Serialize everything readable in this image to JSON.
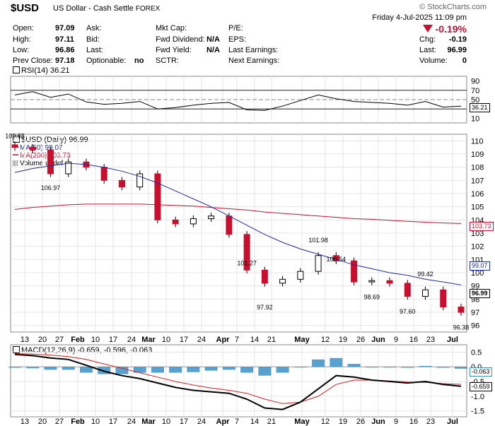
{
  "header": {
    "symbol": "$USD",
    "name": "US Dollar - Cash Settle",
    "exchange": "FOREX",
    "brand": "© StockCharts.com",
    "datetime": "Friday   4-Jul-2025  11:09 pm",
    "change_pct": "-0.19%"
  },
  "quote": {
    "open_label": "Open:",
    "open": "97.09",
    "high_label": "High:",
    "high": "97.11",
    "low_label": "Low:",
    "low": "96.86",
    "prev_label": "Prev Close:",
    "prev": "97.18",
    "ask_label": "Ask:",
    "bid_label": "Bid:",
    "last_label": "Last:",
    "optionable_label": "Optionable:",
    "optionable": "no",
    "mktcap_label": "Mkt Cap:",
    "fwddiv_label": "Fwd Dividend:",
    "fwddiv": "N/A",
    "fwdyield_label": "Fwd Yield:",
    "fwdyield": "N/A",
    "sctr_label": "SCTR:",
    "pe_label": "P/E:",
    "eps_label": "EPS:",
    "lastearn_label": "Last Earnings:",
    "nextearn_label": "Next Earnings:",
    "chg_label": "Chg:",
    "chg": "-0.19",
    "last2_label": "Last:",
    "last2": "96.99",
    "volume_label": "Volume:",
    "volume": "0"
  },
  "rsi_panel": {
    "label": "RSI(14) 36.21",
    "current_tag": "36.21",
    "ticks": [
      "90",
      "70",
      "50",
      "30",
      "10"
    ]
  },
  "price_panel": {
    "legend_main": "$USD (Daily) 96.99",
    "legend_ma50": "MA(50) 99.07",
    "legend_ma200": "MA(200) 103.73",
    "legend_vol": "Volume undef",
    "tag_ma200": "103.73",
    "tag_ma50": "99.07",
    "tag_last": "96.99",
    "ticks": [
      "110",
      "109",
      "108",
      "107",
      "106",
      "105",
      "104",
      "103",
      "102",
      "101",
      "100",
      "99",
      "98",
      "97",
      "96"
    ],
    "annotations": [
      "109.88",
      "106.97",
      "101.27",
      "97.92",
      "101.98",
      "100.54",
      "98.69",
      "97.60",
      "99.42",
      "96.38"
    ]
  },
  "macd_panel": {
    "label": "MACD(12,26,9) -0.659, -0.596, -0.063",
    "tag_hist": "-0.063",
    "tag_macd": "-0.659",
    "ticks": [
      "0.5",
      "0.0",
      "-0.5",
      "-1.0",
      "-1.5"
    ]
  },
  "xaxis": {
    "labels": [
      "13",
      "20",
      "27",
      "Feb",
      "10",
      "17",
      "24",
      "Mar",
      "10",
      "17",
      "24",
      "Apr",
      "7",
      "14",
      "21",
      "May",
      "12",
      "19",
      "26",
      "Jun",
      "9",
      "16",
      "23",
      "Jul"
    ]
  },
  "colors": {
    "up": "#ffffff",
    "down": "#c8102e",
    "ma50": "#1f2c9c",
    "ma200": "#c8102e",
    "rsi": "#000000",
    "macd": "#000000",
    "signal": "#e31a1c",
    "hist": "#3b8fc6"
  },
  "chart_data": [
    {
      "type": "line",
      "title": "RSI(14) 36.21",
      "ylim": [
        0,
        100
      ],
      "x": [
        "2025-01-10",
        "2025-01-17",
        "2025-01-24",
        "2025-01-31",
        "2025-02-07",
        "2025-02-14",
        "2025-02-21",
        "2025-02-28",
        "2025-03-07",
        "2025-03-14",
        "2025-03-21",
        "2025-03-28",
        "2025-04-04",
        "2025-04-11",
        "2025-04-18",
        "2025-04-25",
        "2025-05-02",
        "2025-05-09",
        "2025-05-16",
        "2025-05-23",
        "2025-05-30",
        "2025-06-06",
        "2025-06-13",
        "2025-06-20",
        "2025-06-27",
        "2025-07-04"
      ],
      "series": [
        {
          "name": "RSI(14)",
          "values": [
            60,
            67,
            55,
            62,
            45,
            40,
            42,
            46,
            30,
            33,
            38,
            42,
            44,
            28,
            27,
            36,
            48,
            60,
            52,
            46,
            44,
            42,
            38,
            46,
            34,
            36
          ]
        }
      ]
    },
    {
      "type": "candlestick",
      "title": "$USD (Daily) 96.99",
      "ylim": [
        95.5,
        110.5
      ],
      "x": [
        "2025-01-10",
        "2025-01-17",
        "2025-01-24",
        "2025-01-31",
        "2025-02-07",
        "2025-02-14",
        "2025-02-21",
        "2025-02-28",
        "2025-03-07",
        "2025-03-14",
        "2025-03-21",
        "2025-03-28",
        "2025-04-04",
        "2025-04-11",
        "2025-04-18",
        "2025-04-25",
        "2025-05-02",
        "2025-05-09",
        "2025-05-16",
        "2025-05-23",
        "2025-05-30",
        "2025-06-06",
        "2025-06-13",
        "2025-06-20",
        "2025-06-27",
        "2025-07-04"
      ],
      "series": [
        {
          "name": "$USD",
          "values": [
            109.5,
            109.3,
            107.5,
            108.4,
            108.0,
            107.0,
            106.5,
            107.5,
            104.0,
            103.7,
            104.1,
            104.3,
            102.9,
            100.2,
            99.2,
            99.5,
            100.1,
            101.3,
            100.9,
            99.3,
            99.4,
            99.2,
            98.2,
            98.7,
            97.4,
            96.99
          ]
        },
        {
          "name": "MA(50)",
          "values": [
            107.6,
            107.9,
            108.1,
            108.3,
            108.2,
            108.0,
            107.7,
            107.3,
            106.8,
            106.2,
            105.6,
            105.0,
            104.3,
            103.6,
            102.9,
            102.3,
            101.8,
            101.4,
            101.0,
            100.6,
            100.3,
            100.0,
            99.8,
            99.5,
            99.3,
            99.07
          ]
        },
        {
          "name": "MA(200)",
          "values": [
            104.8,
            104.95,
            105.05,
            105.15,
            105.2,
            105.2,
            105.2,
            105.2,
            105.15,
            105.1,
            105.05,
            104.95,
            104.85,
            104.75,
            104.6,
            104.5,
            104.4,
            104.3,
            104.2,
            104.1,
            104.05,
            103.97,
            103.9,
            103.83,
            103.77,
            103.73
          ]
        }
      ]
    },
    {
      "type": "line",
      "title": "MACD(12,26,9) -0.659, -0.596, -0.063",
      "ylim": [
        -1.7,
        0.75
      ],
      "x": [
        "2025-01-10",
        "2025-01-17",
        "2025-01-24",
        "2025-01-31",
        "2025-02-07",
        "2025-02-14",
        "2025-02-21",
        "2025-02-28",
        "2025-03-07",
        "2025-03-14",
        "2025-03-21",
        "2025-03-28",
        "2025-04-04",
        "2025-04-11",
        "2025-04-18",
        "2025-04-25",
        "2025-05-02",
        "2025-05-09",
        "2025-05-16",
        "2025-05-23",
        "2025-05-30",
        "2025-06-06",
        "2025-06-13",
        "2025-06-20",
        "2025-06-27",
        "2025-07-04"
      ],
      "series": [
        {
          "name": "MACD",
          "values": [
            0.42,
            0.38,
            0.3,
            0.25,
            0.05,
            -0.15,
            -0.3,
            -0.4,
            -0.55,
            -0.7,
            -0.8,
            -0.85,
            -0.9,
            -1.1,
            -1.4,
            -1.45,
            -1.2,
            -0.75,
            -0.3,
            -0.35,
            -0.45,
            -0.5,
            -0.55,
            -0.5,
            -0.6,
            -0.659
          ]
        },
        {
          "name": "Signal",
          "values": [
            0.45,
            0.43,
            0.4,
            0.35,
            0.25,
            0.1,
            -0.05,
            -0.2,
            -0.35,
            -0.5,
            -0.62,
            -0.72,
            -0.8,
            -0.9,
            -1.1,
            -1.25,
            -1.2,
            -1.0,
            -0.6,
            -0.45,
            -0.45,
            -0.48,
            -0.52,
            -0.53,
            -0.57,
            -0.596
          ]
        },
        {
          "name": "Histogram",
          "values": [
            -0.03,
            -0.05,
            -0.1,
            -0.1,
            -0.2,
            -0.25,
            -0.25,
            -0.2,
            -0.2,
            -0.2,
            -0.18,
            -0.13,
            -0.1,
            -0.2,
            -0.3,
            -0.2,
            0.0,
            0.25,
            0.3,
            0.1,
            0.0,
            -0.02,
            -0.03,
            0.03,
            -0.03,
            -0.063
          ]
        }
      ]
    }
  ]
}
